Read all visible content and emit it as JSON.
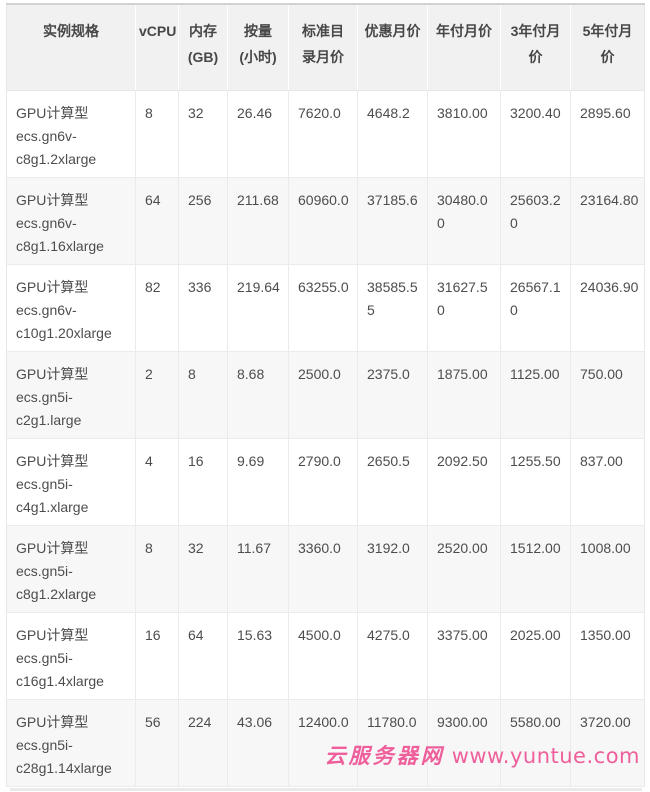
{
  "table": {
    "headers": [
      {
        "id": "spec",
        "label": "实例规格"
      },
      {
        "id": "vcpu",
        "label": "vCPU"
      },
      {
        "id": "memory-gb",
        "label": "内存\n(GB)"
      },
      {
        "id": "hourly-price",
        "label": "按量\n(小时)"
      },
      {
        "id": "standard-monthly",
        "label": "标准目\n录月价"
      },
      {
        "id": "discount-monthly",
        "label": "优惠月价"
      },
      {
        "id": "annual-monthly",
        "label": "年付月价"
      },
      {
        "id": "three-year-monthly",
        "label": "3年付月\n价"
      },
      {
        "id": "five-year-monthly",
        "label": "5年付月\n价"
      }
    ],
    "rows": [
      {
        "spec": "GPU计算型\necs.gn6v-\nc8g1.2xlarge",
        "values": [
          "8",
          "32",
          "26.46",
          "7620.0",
          "4648.2",
          "3810.00",
          "3200.40",
          "2895.60"
        ]
      },
      {
        "spec": "GPU计算型\necs.gn6v-\nc8g1.16xlarge",
        "values": [
          "64",
          "256",
          "211.68",
          "60960.0",
          "37185.6",
          "30480.00",
          "25603.20",
          "23164.80"
        ]
      },
      {
        "spec": "GPU计算型\necs.gn6v-\nc10g1.20xlarge",
        "values": [
          "82",
          "336",
          "219.64",
          "63255.0",
          "38585.55",
          "31627.50",
          "26567.10",
          "24036.90"
        ]
      },
      {
        "spec": "GPU计算型\necs.gn5i-\nc2g1.large",
        "values": [
          "2",
          "8",
          "8.68",
          "2500.0",
          "2375.0",
          "1875.00",
          "1125.00",
          "750.00"
        ]
      },
      {
        "spec": "GPU计算型\necs.gn5i-\nc4g1.xlarge",
        "values": [
          "4",
          "16",
          "9.69",
          "2790.0",
          "2650.5",
          "2092.50",
          "1255.50",
          "837.00"
        ]
      },
      {
        "spec": "GPU计算型\necs.gn5i-\nc8g1.2xlarge",
        "values": [
          "8",
          "32",
          "11.67",
          "3360.0",
          "3192.0",
          "2520.00",
          "1512.00",
          "1008.00"
        ]
      },
      {
        "spec": "GPU计算型\necs.gn5i-\nc16g1.4xlarge",
        "values": [
          "16",
          "64",
          "15.63",
          "4500.0",
          "4275.0",
          "3375.00",
          "2025.00",
          "1350.00"
        ]
      },
      {
        "spec": "GPU计算型\necs.gn5i-\nc28g1.14xlarge",
        "values": [
          "56",
          "224",
          "43.06",
          "12400.0",
          "11780.0",
          "9300.00",
          "5580.00",
          "3720.00"
        ]
      }
    ]
  },
  "watermark": {
    "site_name": "云服务器网",
    "url": "www.yuntue.com",
    "color": "#ee5f9b"
  },
  "colors": {
    "header_bg": "#f1f1f1",
    "zebra_row_bg": "#f7f7f7",
    "border": "#ebebeb",
    "text": "#4d4d4d",
    "watermark_pink": "#ee5f9b"
  }
}
